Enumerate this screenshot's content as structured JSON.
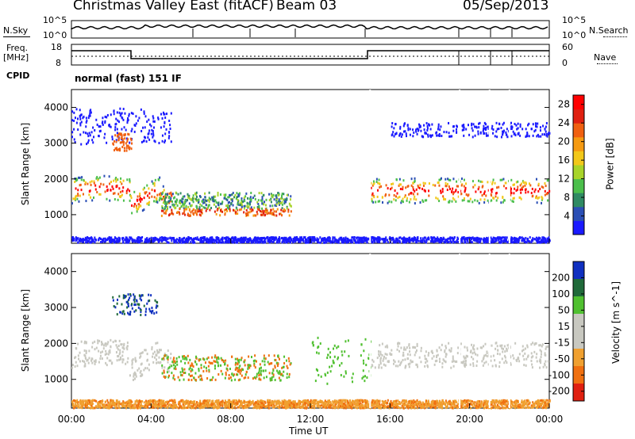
{
  "header": {
    "station": "Christmas Valley East (fitACF)",
    "beam": "Beam 03",
    "date": "05/Sep/2013"
  },
  "panels": {
    "nsky": {
      "left_label": "N.Sky",
      "right_label": "N.Search",
      "left_ticks": [
        "10^5",
        "10^0"
      ],
      "right_ticks": [
        "10^5",
        "10^0"
      ]
    },
    "freq": {
      "left_label_1": "Freq.",
      "left_label_2": "[MHz]",
      "right_label": "Nave",
      "left_ticks": [
        "18",
        "8"
      ],
      "right_ticks": [
        "60",
        "0"
      ]
    },
    "cpid": {
      "label": "CPID",
      "mode": "normal (fast) 151 IF"
    }
  },
  "chart_data": [
    {
      "type": "heatmap",
      "name": "power",
      "ylabel": "Slant Range [km]",
      "y_ticks": [
        1000,
        2000,
        3000,
        4000
      ],
      "ylim": [
        200,
        4500
      ],
      "colorbar_label": "Power [dB]",
      "colorbar_ticks": [
        "4",
        "8",
        "12",
        "16",
        "20",
        "24",
        "28"
      ],
      "colorbar_range": [
        0,
        30
      ]
    },
    {
      "type": "heatmap",
      "name": "velocity",
      "ylabel": "Slant Range [km]",
      "y_ticks": [
        1000,
        2000,
        3000,
        4000
      ],
      "ylim": [
        200,
        4500
      ],
      "colorbar_label": "Velocity [m s^-1]",
      "colorbar_ticks": [
        "200",
        "100",
        "50",
        "15",
        "-15",
        "-50",
        "-100",
        "-200"
      ]
    }
  ],
  "x_axis": {
    "label": "Time UT",
    "ticks": [
      "00:00",
      "04:00",
      "08:00",
      "12:00",
      "16:00",
      "20:00",
      "00:00"
    ]
  },
  "colors": {
    "power_scale": [
      "#1a1aff",
      "#2b4fb5",
      "#2f8a63",
      "#4cbf4c",
      "#a8d42a",
      "#f2c81a",
      "#f59a12",
      "#f06010",
      "#e02010",
      "#ff0000"
    ],
    "velocity_scale": [
      "#1030c0",
      "#206a3a",
      "#50c030",
      "#c8c8c0",
      "#c8c8c0",
      "#f0a030",
      "#f07010",
      "#e02010"
    ]
  }
}
